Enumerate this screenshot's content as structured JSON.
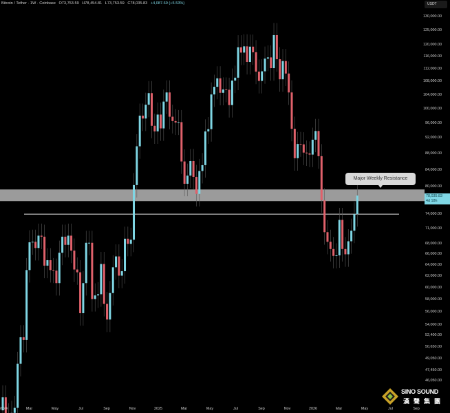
{
  "header": {
    "symbol": "Bitcoin / Tether · 1W · Coinbase",
    "open": "O73,753.59",
    "high": "H78,454.81",
    "low": "L73,753.59",
    "close": "C78,035.83",
    "change": "+4,087.69 (+5.53%)"
  },
  "price_axis": {
    "unit": "USDT",
    "labels": [
      "130,000.00",
      "125,000.00",
      "120,000.00",
      "116,000.00",
      "112,000.00",
      "108,000.00",
      "104,000.00",
      "100,000.00",
      "96,000.00",
      "92,000.00",
      "88,000.00",
      "84,000.00",
      "80,000.00",
      "74,000.00",
      "71,000.00",
      "68,000.00",
      "66,000.00",
      "64,000.00",
      "62,000.00",
      "60,000.00",
      "58,000.00",
      "56,000.00",
      "54,000.00",
      "52,400.00",
      "50,650.00",
      "49,050.00",
      "47,450.00",
      "46,050.00"
    ],
    "current_price": "78,035.83",
    "countdown": "4d 18h"
  },
  "time_axis": {
    "labels": [
      "2024",
      "Mar",
      "May",
      "Jul",
      "Sep",
      "Nov",
      "2025",
      "Mar",
      "May",
      "Jul",
      "Sep",
      "Nov",
      "2026",
      "Mar",
      "May",
      "Jul",
      "Sep"
    ]
  },
  "annotation": {
    "label": "Major Weekly Resistance",
    "resistance_zone": [
      76800,
      79400
    ],
    "support_line": 74000
  },
  "watermark": {
    "brand": "SINO SOUND",
    "brand_cn": "漢聲集團"
  },
  "colors": {
    "up": "#7fd6e4",
    "down": "#e0616b",
    "zone": "#9b9b9b",
    "line": "#e6e6e6",
    "background": "#000000"
  },
  "chart_data": {
    "type": "candlestick",
    "title": "Bitcoin / Tether · 1W · Coinbase",
    "interval": "1W",
    "y_scale": "log",
    "ylim": [
      43000,
      130000
    ],
    "x_range": [
      "2024-01",
      "2026-09"
    ],
    "first_open": 42300,
    "closes": [
      43900,
      41700,
      41600,
      42000,
      42600,
      48300,
      52100,
      51700,
      63100,
      68300,
      68400,
      67200,
      69600,
      69400,
      63900,
      64900,
      63100,
      63000,
      60800,
      66300,
      69400,
      67800,
      69600,
      66700,
      63200,
      62700,
      55800,
      60800,
      68200,
      68200,
      58100,
      58700,
      58900,
      64200,
      57300,
      54800,
      59100,
      63600,
      65600,
      62100,
      62900,
      69000,
      68000,
      68800,
      80400,
      89800,
      98000,
      97200,
      101100,
      104500,
      95200,
      93700,
      98300,
      94500,
      102000,
      104700,
      97700,
      96500,
      96100,
      96200,
      86000,
      80700,
      82600,
      86100,
      82300,
      78400,
      83700,
      85100,
      93700,
      94300,
      104100,
      106400,
      109000,
      104600,
      105600,
      105500,
      101000,
      108300,
      109200,
      119100,
      117300,
      119400,
      114200,
      119300,
      117400,
      111100,
      108200,
      111200,
      115300,
      115700,
      112200,
      123300,
      115100,
      108700,
      114500,
      110500,
      104700,
      94400,
      86800,
      90400,
      90300,
      88200,
      88000,
      87700,
      91500,
      93800,
      87300,
      77000,
      70300,
      68400,
      67000,
      65700,
      65800,
      72800,
      67000,
      66000,
      68500,
      70600,
      74000,
      78035.83
    ]
  }
}
